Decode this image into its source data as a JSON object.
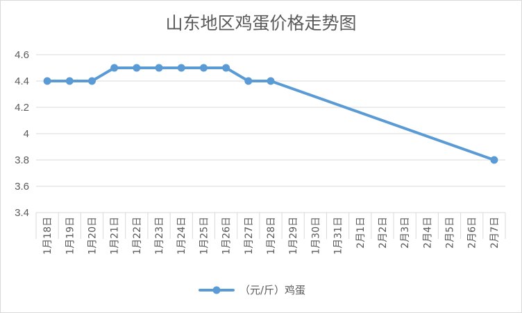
{
  "chart_data": {
    "type": "line",
    "title": "山东地区鸡蛋价格走势图",
    "categories": [
      "1月18日",
      "1月19日",
      "1月20日",
      "1月21日",
      "1月22日",
      "1月23日",
      "1月24日",
      "1月25日",
      "1月26日",
      "1月27日",
      "1月28日",
      "1月29日",
      "1月30日",
      "1月31日",
      "2月1日",
      "2月2日",
      "2月3日",
      "2月4日",
      "2月5日",
      "2月6日",
      "2月7日"
    ],
    "series": [
      {
        "name": "（元/斤）鸡蛋",
        "color": "#5b9bd5",
        "values": [
          4.4,
          4.4,
          4.4,
          4.5,
          4.5,
          4.5,
          4.5,
          4.5,
          4.5,
          4.4,
          4.4,
          null,
          null,
          null,
          null,
          null,
          null,
          null,
          null,
          null,
          3.8
        ]
      }
    ],
    "ylim": [
      3.4,
      4.6
    ],
    "yticks": [
      3.4,
      3.6,
      3.8,
      4,
      4.2,
      4.4,
      4.6
    ],
    "ytick_labels": [
      "3.4",
      "3.6",
      "3.8",
      "4",
      "4.2",
      "4.4",
      "4.6"
    ],
    "grid": true,
    "legend": "bottom",
    "gap_handling": "connect"
  }
}
